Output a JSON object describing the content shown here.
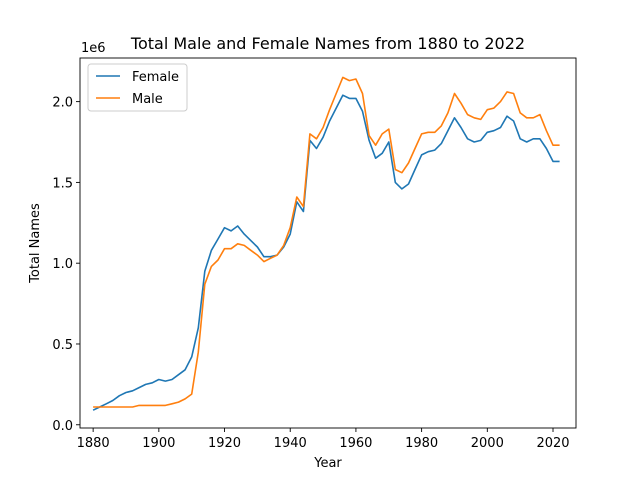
{
  "chart_data": {
    "type": "line",
    "title": "Total Male and Female Names from 1880 to 2022",
    "xlabel": "Year",
    "ylabel": "Total Names",
    "y_scale_label": "1e6",
    "xlim": [
      1876,
      2027
    ],
    "ylim": [
      -0.02,
      2.27
    ],
    "x_ticks": [
      1880,
      1900,
      1920,
      1940,
      1960,
      1980,
      2000,
      2020
    ],
    "y_ticks": [
      0.0,
      0.5,
      1.0,
      1.5,
      2.0
    ],
    "y_tick_labels": [
      "0.0",
      "0.5",
      "1.0",
      "1.5",
      "2.0"
    ],
    "legend": "upper-left",
    "grid": false,
    "x": [
      1880,
      1882,
      1884,
      1886,
      1888,
      1890,
      1892,
      1894,
      1896,
      1898,
      1900,
      1902,
      1904,
      1906,
      1908,
      1910,
      1912,
      1914,
      1916,
      1918,
      1920,
      1922,
      1924,
      1926,
      1928,
      1930,
      1932,
      1934,
      1936,
      1938,
      1940,
      1942,
      1944,
      1946,
      1948,
      1950,
      1952,
      1954,
      1956,
      1958,
      1960,
      1962,
      1964,
      1966,
      1968,
      1970,
      1972,
      1974,
      1976,
      1978,
      1980,
      1982,
      1984,
      1986,
      1988,
      1990,
      1992,
      1994,
      1996,
      1998,
      2000,
      2002,
      2004,
      2006,
      2008,
      2010,
      2012,
      2014,
      2016,
      2018,
      2020,
      2022
    ],
    "series": [
      {
        "name": "Female",
        "color": "#1f77b4",
        "values": [
          0.09,
          0.11,
          0.13,
          0.15,
          0.18,
          0.2,
          0.21,
          0.23,
          0.25,
          0.26,
          0.28,
          0.27,
          0.28,
          0.31,
          0.34,
          0.42,
          0.6,
          0.95,
          1.08,
          1.15,
          1.22,
          1.2,
          1.23,
          1.18,
          1.14,
          1.1,
          1.04,
          1.04,
          1.05,
          1.1,
          1.18,
          1.38,
          1.32,
          1.76,
          1.71,
          1.78,
          1.88,
          1.96,
          2.04,
          2.02,
          2.02,
          1.94,
          1.76,
          1.65,
          1.68,
          1.75,
          1.5,
          1.46,
          1.49,
          1.58,
          1.67,
          1.69,
          1.7,
          1.74,
          1.82,
          1.9,
          1.84,
          1.77,
          1.75,
          1.76,
          1.81,
          1.82,
          1.84,
          1.91,
          1.88,
          1.77,
          1.75,
          1.77,
          1.77,
          1.71,
          1.63,
          1.63
        ]
      },
      {
        "name": "Male",
        "color": "#ff7f0e",
        "values": [
          0.11,
          0.11,
          0.11,
          0.11,
          0.11,
          0.11,
          0.11,
          0.12,
          0.12,
          0.12,
          0.12,
          0.12,
          0.13,
          0.14,
          0.16,
          0.19,
          0.45,
          0.87,
          0.98,
          1.02,
          1.09,
          1.09,
          1.12,
          1.11,
          1.08,
          1.05,
          1.01,
          1.03,
          1.05,
          1.11,
          1.22,
          1.41,
          1.35,
          1.8,
          1.77,
          1.84,
          1.95,
          2.05,
          2.15,
          2.13,
          2.14,
          2.05,
          1.79,
          1.73,
          1.8,
          1.83,
          1.58,
          1.56,
          1.62,
          1.71,
          1.8,
          1.81,
          1.81,
          1.85,
          1.93,
          2.05,
          1.99,
          1.92,
          1.9,
          1.89,
          1.95,
          1.96,
          2.0,
          2.06,
          2.05,
          1.93,
          1.9,
          1.9,
          1.92,
          1.82,
          1.73,
          1.73
        ]
      }
    ]
  }
}
